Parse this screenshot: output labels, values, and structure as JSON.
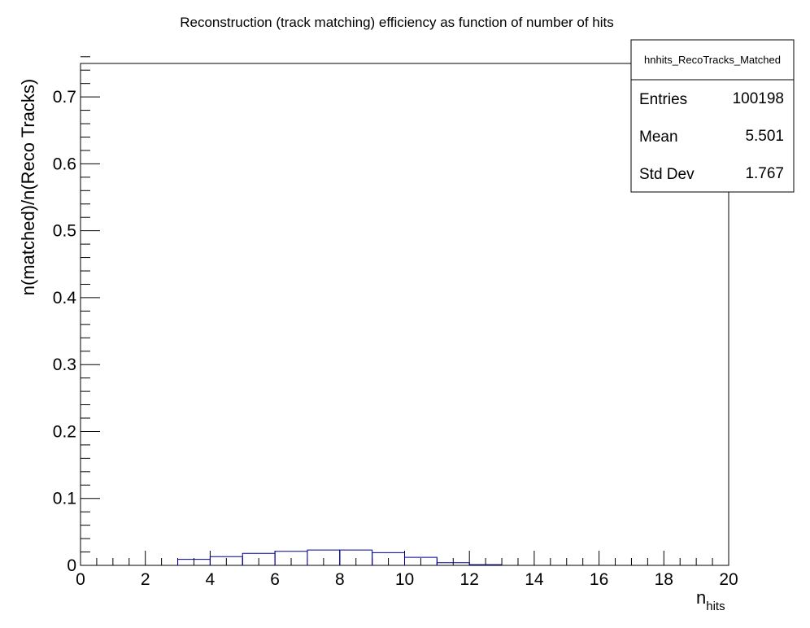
{
  "chart_data": {
    "type": "bar",
    "title": "Reconstruction (track matching) efficiency as function of number of hits",
    "xlabel": "n",
    "xlabel_sub": "hits",
    "ylabel": "n(matched)/n(Reco Tracks)",
    "xlim": [
      0,
      20
    ],
    "ylim": [
      0,
      0.75
    ],
    "xticks": [
      "0",
      "2",
      "4",
      "6",
      "8",
      "10",
      "12",
      "14",
      "16",
      "18",
      "20"
    ],
    "yticks": [
      "0",
      "0.1",
      "0.2",
      "0.3",
      "0.4",
      "0.5",
      "0.6",
      "0.7"
    ],
    "bin_edges": [
      3,
      4,
      5,
      6,
      7,
      8,
      9,
      10,
      11,
      12,
      13
    ],
    "values": [
      0.009,
      0.013,
      0.018,
      0.021,
      0.023,
      0.023,
      0.019,
      0.012,
      0.004,
      0.001
    ],
    "line_color": "#000099",
    "legend_position": "top-right",
    "stats": {
      "name": "hnhits_RecoTracks_Matched",
      "rows": [
        {
          "label": "Entries",
          "value": "100198"
        },
        {
          "label": "Mean",
          "value": "5.501"
        },
        {
          "label": "Std Dev",
          "value": "1.767"
        }
      ]
    }
  }
}
